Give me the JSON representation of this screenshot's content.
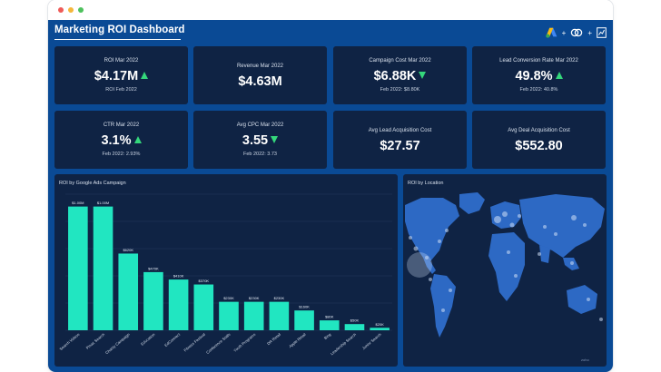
{
  "dashboard": {
    "title": "Marketing ROI Dashboard",
    "icons": [
      "google-ads-icon",
      "plus-icon",
      "link-icon",
      "plus-icon",
      "report-icon"
    ]
  },
  "kpis": [
    {
      "label": "ROI Mar 2022",
      "value": "$4.17M",
      "trend": "up",
      "sub": "ROI Feb 2022"
    },
    {
      "label": "Revenue Mar 2022",
      "value": "$4.63M",
      "trend": "",
      "sub": ""
    },
    {
      "label": "Campaign Cost Mar 2022",
      "value": "$6.88K",
      "trend": "down",
      "sub": "Feb 2022: $8.80K"
    },
    {
      "label": "Lead Conversion Rate Mar 2022",
      "value": "49.8%",
      "trend": "up",
      "sub": "Feb 2022: 40.8%"
    },
    {
      "label": "CTR Mar 2022",
      "value": "3.1%",
      "trend": "up",
      "sub": "Feb 2022: 2.93%"
    },
    {
      "label": "Avg CPC Mar 2022",
      "value": "3.55",
      "trend": "down",
      "sub": "Feb 2022: 3.73"
    },
    {
      "label": "Avg Lead Acquisition Cost",
      "value": "$27.57",
      "trend": "",
      "sub": ""
    },
    {
      "label": "Avg Deal Acquisition Cost",
      "value": "$552.80",
      "trend": "",
      "sub": ""
    }
  ],
  "bar_panel": {
    "title": "ROI by Google Ads Campaign"
  },
  "map_panel": {
    "title": "ROI by Location",
    "credit": "zoho"
  },
  "colors": {
    "background": "#0a4a95",
    "card": "#0f2344",
    "bar": "#21e6c1",
    "arrow": "#34d77b",
    "map_land": "#2d69c4"
  },
  "chart_data": {
    "type": "bar",
    "title": "ROI by Google Ads Campaign",
    "categories": [
      "Search Videos",
      "Pmax Search",
      "Charity Campaign",
      "Education",
      "EdConnect",
      "Fitness Festival",
      "Conference Stalls",
      "Youth Programs",
      "DR Retail",
      "Apple Retail",
      "Bing",
      "Leadership Search",
      "Junior Search"
    ],
    "values": [
      1000000,
      1000000,
      620000,
      470000,
      410000,
      370000,
      230000,
      230000,
      230000,
      160000,
      80000,
      50000,
      20000
    ],
    "data_labels": [
      "$1.00M",
      "$1.00M",
      "$620K",
      "$470K",
      "$410K",
      "$370K",
      "$230K",
      "$230K",
      "$230K",
      "$160K",
      "$80K",
      "$50K",
      "$20K"
    ],
    "ylim": [
      0,
      1100000
    ],
    "grid": true
  }
}
